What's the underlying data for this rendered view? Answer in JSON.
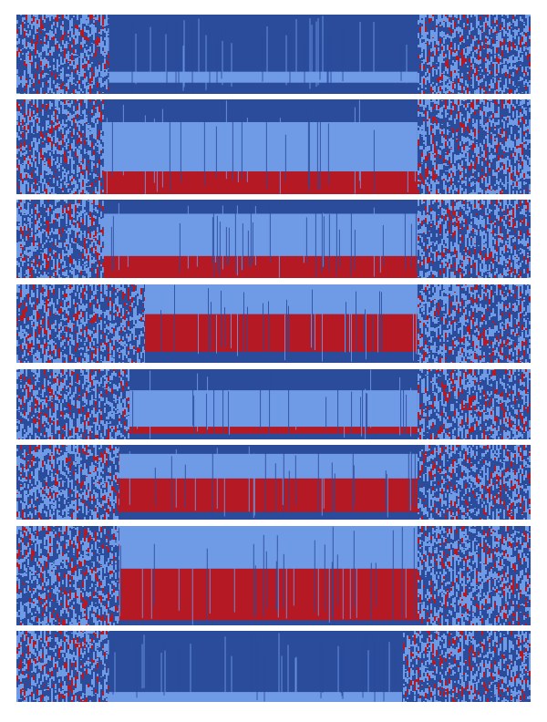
{
  "chart_data": {
    "type": "heatmap",
    "title": "",
    "xlabel": "",
    "ylabel": "",
    "legend": "none",
    "grid": false,
    "colors": {
      "state_1": "#2b4b9b",
      "state_2": "#6f9ae6",
      "state_3": "#b51a24",
      "background": "#ffffff"
    },
    "panels": [
      {
        "name": "panel-1",
        "mosaic_extent_fraction": [
          0.0,
          1.0
        ],
        "core_extent_fraction": [
          0.18,
          0.78
        ],
        "core_bands": [
          {
            "state": 1,
            "from": 0.0,
            "to": 0.72
          },
          {
            "state": 2,
            "from": 0.72,
            "to": 0.86
          },
          {
            "state": 1,
            "from": 0.86,
            "to": 1.0
          }
        ]
      },
      {
        "name": "panel-2",
        "mosaic_extent_fraction": [
          0.0,
          1.0
        ],
        "core_extent_fraction": [
          0.17,
          0.78
        ],
        "core_bands": [
          {
            "state": 1,
            "from": 0.0,
            "to": 0.24
          },
          {
            "state": 2,
            "from": 0.24,
            "to": 0.76
          },
          {
            "state": 3,
            "from": 0.76,
            "to": 1.0
          }
        ]
      },
      {
        "name": "panel-3",
        "mosaic_extent_fraction": [
          0.0,
          1.0
        ],
        "core_extent_fraction": [
          0.17,
          0.78
        ],
        "core_bands": [
          {
            "state": 1,
            "from": 0.0,
            "to": 0.18
          },
          {
            "state": 2,
            "from": 0.18,
            "to": 0.72
          },
          {
            "state": 3,
            "from": 0.72,
            "to": 1.0
          }
        ]
      },
      {
        "name": "panel-4",
        "mosaic_extent_fraction": [
          0.0,
          1.0
        ],
        "core_extent_fraction": [
          0.25,
          0.78
        ],
        "core_bands": [
          {
            "state": 2,
            "from": 0.0,
            "to": 0.38
          },
          {
            "state": 3,
            "from": 0.38,
            "to": 0.86
          },
          {
            "state": 1,
            "from": 0.86,
            "to": 1.0
          }
        ]
      },
      {
        "name": "panel-5",
        "mosaic_extent_fraction": [
          0.0,
          1.0
        ],
        "core_extent_fraction": [
          0.22,
          0.78
        ],
        "core_bands": [
          {
            "state": 1,
            "from": 0.0,
            "to": 0.3
          },
          {
            "state": 2,
            "from": 0.3,
            "to": 0.82
          },
          {
            "state": 3,
            "from": 0.82,
            "to": 0.92
          },
          {
            "state": 1,
            "from": 0.92,
            "to": 1.0
          }
        ]
      },
      {
        "name": "panel-6",
        "mosaic_extent_fraction": [
          0.0,
          1.0
        ],
        "core_extent_fraction": [
          0.2,
          0.78
        ],
        "core_bands": [
          {
            "state": 1,
            "from": 0.0,
            "to": 0.12
          },
          {
            "state": 2,
            "from": 0.12,
            "to": 0.45
          },
          {
            "state": 3,
            "from": 0.45,
            "to": 0.9
          },
          {
            "state": 1,
            "from": 0.9,
            "to": 1.0
          }
        ]
      },
      {
        "name": "panel-7",
        "mosaic_extent_fraction": [
          0.0,
          1.0
        ],
        "core_extent_fraction": [
          0.2,
          0.78
        ],
        "core_bands": [
          {
            "state": 2,
            "from": 0.0,
            "to": 0.43
          },
          {
            "state": 3,
            "from": 0.43,
            "to": 0.95
          },
          {
            "state": 1,
            "from": 0.95,
            "to": 1.0
          }
        ]
      },
      {
        "name": "panel-8",
        "mosaic_extent_fraction": [
          0.0,
          1.0
        ],
        "core_extent_fraction": [
          0.18,
          0.75
        ],
        "core_bands": [
          {
            "state": 1,
            "from": 0.0,
            "to": 0.86
          },
          {
            "state": 2,
            "from": 0.86,
            "to": 1.0
          }
        ]
      }
    ]
  }
}
